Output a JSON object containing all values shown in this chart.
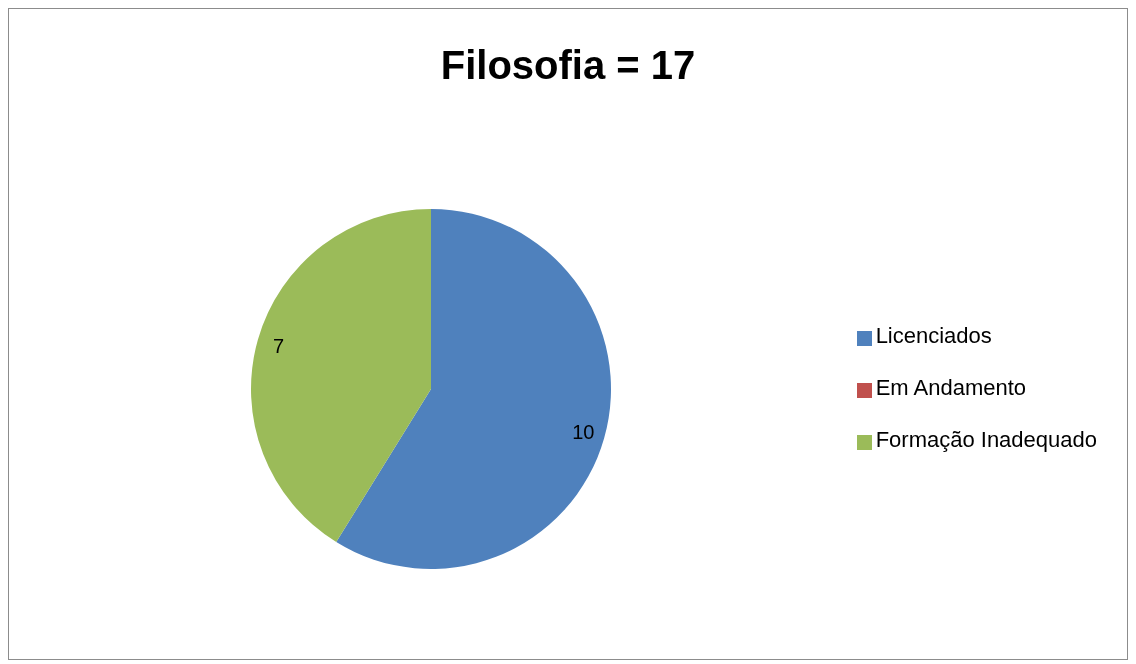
{
  "chart_data": {
    "type": "pie",
    "title": "Filosofia = 17",
    "categories": [
      "Licenciados",
      "Em Andamento",
      "Formação Inadequado"
    ],
    "values": [
      10,
      0,
      7
    ],
    "colors": [
      "#4f81bd",
      "#c0504d",
      "#9bbb59"
    ],
    "value_labels": [
      "10",
      null,
      "7"
    ],
    "legend": "right"
  }
}
